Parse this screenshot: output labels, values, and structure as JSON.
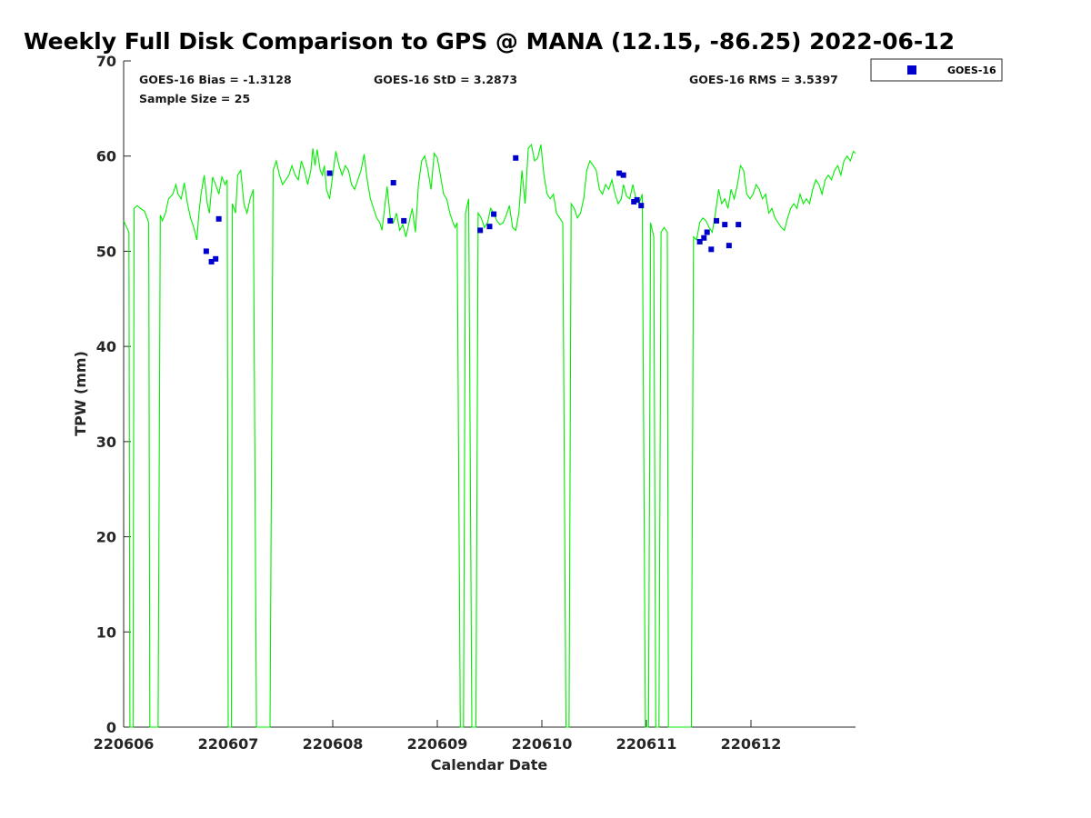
{
  "colors": {
    "gps_line": "#00ee00",
    "goes_marker": "#0000cc",
    "axis": "#262626"
  },
  "stats": {
    "bias": "GOES-16 Bias = -1.3128",
    "std": "GOES-16 StD = 3.2873",
    "rms": "GOES-16 RMS = 3.5397",
    "sample": "Sample Size = 25"
  },
  "legend": {
    "entries": [
      "GOES-16"
    ]
  },
  "chart_data": {
    "type": "line+scatter",
    "title": "Weekly Full Disk Comparison to GPS @ MANA (12.15, -86.25) 2022-06-12",
    "xlabel": "Calendar Date",
    "ylabel": "TPW (mm)",
    "xlim": [
      0,
      7.0
    ],
    "ylim": [
      0,
      70
    ],
    "x_ticks": [
      0,
      1,
      2,
      3,
      4,
      5,
      6
    ],
    "x_tick_labels": [
      "220606",
      "220607",
      "220608",
      "220609",
      "220610",
      "220611",
      "220612"
    ],
    "y_ticks": [
      0,
      10,
      20,
      30,
      40,
      50,
      60,
      70
    ],
    "y_tick_labels": [
      "0",
      "10",
      "20",
      "30",
      "40",
      "50",
      "60",
      "70"
    ],
    "series": [
      {
        "name": "GPS",
        "kind": "line",
        "points": [
          [
            0.0,
            53.2
          ],
          [
            0.03,
            52.5
          ],
          [
            0.05,
            52.0
          ],
          [
            0.06,
            0
          ],
          [
            0.09,
            0
          ],
          [
            0.1,
            54.5
          ],
          [
            0.13,
            54.8
          ],
          [
            0.16,
            54.5
          ],
          [
            0.2,
            54.2
          ],
          [
            0.24,
            53.0
          ],
          [
            0.25,
            0
          ],
          [
            0.33,
            0
          ],
          [
            0.35,
            53.8
          ],
          [
            0.37,
            53.2
          ],
          [
            0.4,
            54.0
          ],
          [
            0.43,
            55.5
          ],
          [
            0.47,
            56.0
          ],
          [
            0.5,
            57.0
          ],
          [
            0.52,
            56.0
          ],
          [
            0.55,
            55.5
          ],
          [
            0.58,
            57.2
          ],
          [
            0.61,
            55.0
          ],
          [
            0.64,
            53.5
          ],
          [
            0.67,
            52.5
          ],
          [
            0.7,
            51.2
          ],
          [
            0.72,
            54.0
          ],
          [
            0.74,
            56.0
          ],
          [
            0.77,
            58.0
          ],
          [
            0.8,
            55.0
          ],
          [
            0.82,
            54.0
          ],
          [
            0.85,
            57.8
          ],
          [
            0.88,
            57.0
          ],
          [
            0.91,
            56.0
          ],
          [
            0.94,
            57.8
          ],
          [
            0.97,
            57.0
          ],
          [
            0.99,
            57.5
          ],
          [
            1.0,
            0
          ],
          [
            1.03,
            0
          ],
          [
            1.04,
            55.0
          ],
          [
            1.07,
            54.0
          ],
          [
            1.09,
            58.0
          ],
          [
            1.12,
            58.5
          ],
          [
            1.15,
            55.0
          ],
          [
            1.18,
            54.0
          ],
          [
            1.21,
            55.5
          ],
          [
            1.24,
            56.5
          ],
          [
            1.27,
            0
          ],
          [
            1.4,
            0
          ],
          [
            1.43,
            58.5
          ],
          [
            1.46,
            59.5
          ],
          [
            1.49,
            58.0
          ],
          [
            1.52,
            57.0
          ],
          [
            1.55,
            57.5
          ],
          [
            1.58,
            58.0
          ],
          [
            1.61,
            59.0
          ],
          [
            1.64,
            58.0
          ],
          [
            1.67,
            57.5
          ],
          [
            1.7,
            59.5
          ],
          [
            1.73,
            58.5
          ],
          [
            1.76,
            57.0
          ],
          [
            1.79,
            58.5
          ],
          [
            1.81,
            60.8
          ],
          [
            1.83,
            59.0
          ],
          [
            1.85,
            60.7
          ],
          [
            1.88,
            58.5
          ],
          [
            1.9,
            58.0
          ],
          [
            1.92,
            59.0
          ],
          [
            1.94,
            56.5
          ],
          [
            1.97,
            55.5
          ],
          [
            2.0,
            58.0
          ],
          [
            2.03,
            60.5
          ],
          [
            2.06,
            59.0
          ],
          [
            2.09,
            58.0
          ],
          [
            2.12,
            59.0
          ],
          [
            2.15,
            58.5
          ],
          [
            2.18,
            57.0
          ],
          [
            2.21,
            56.5
          ],
          [
            2.24,
            57.5
          ],
          [
            2.27,
            58.5
          ],
          [
            2.3,
            60.2
          ],
          [
            2.33,
            57.5
          ],
          [
            2.36,
            55.5
          ],
          [
            2.39,
            54.5
          ],
          [
            2.42,
            53.5
          ],
          [
            2.45,
            53.0
          ],
          [
            2.47,
            52.2
          ],
          [
            2.49,
            54.0
          ],
          [
            2.52,
            56.8
          ],
          [
            2.55,
            53.5
          ],
          [
            2.58,
            53.0
          ],
          [
            2.61,
            54.0
          ],
          [
            2.64,
            52.2
          ],
          [
            2.67,
            52.8
          ],
          [
            2.7,
            51.5
          ],
          [
            2.73,
            53.0
          ],
          [
            2.76,
            54.5
          ],
          [
            2.79,
            52.0
          ],
          [
            2.82,
            57.0
          ],
          [
            2.85,
            59.5
          ],
          [
            2.88,
            60.0
          ],
          [
            2.91,
            58.5
          ],
          [
            2.94,
            56.5
          ],
          [
            2.97,
            60.3
          ],
          [
            3.0,
            59.8
          ],
          [
            3.03,
            58.0
          ],
          [
            3.06,
            56.0
          ],
          [
            3.09,
            55.5
          ],
          [
            3.12,
            54.0
          ],
          [
            3.15,
            53.0
          ],
          [
            3.17,
            52.5
          ],
          [
            3.19,
            53.0
          ],
          [
            3.22,
            0
          ],
          [
            3.25,
            0
          ],
          [
            3.27,
            54.0
          ],
          [
            3.3,
            55.5
          ],
          [
            3.33,
            0
          ],
          [
            3.37,
            0
          ],
          [
            3.39,
            54.0
          ],
          [
            3.42,
            53.5
          ],
          [
            3.45,
            52.5
          ],
          [
            3.48,
            53.0
          ],
          [
            3.51,
            54.5
          ],
          [
            3.54,
            54.0
          ],
          [
            3.57,
            53.2
          ],
          [
            3.6,
            52.8
          ],
          [
            3.63,
            53.0
          ],
          [
            3.66,
            53.8
          ],
          [
            3.69,
            54.8
          ],
          [
            3.72,
            52.5
          ],
          [
            3.75,
            52.2
          ],
          [
            3.78,
            54.0
          ],
          [
            3.81,
            58.5
          ],
          [
            3.84,
            55.0
          ],
          [
            3.87,
            60.8
          ],
          [
            3.9,
            61.2
          ],
          [
            3.93,
            59.5
          ],
          [
            3.96,
            59.8
          ],
          [
            3.99,
            61.2
          ],
          [
            4.02,
            58.0
          ],
          [
            4.05,
            56.0
          ],
          [
            4.08,
            55.5
          ],
          [
            4.11,
            56.0
          ],
          [
            4.14,
            54.0
          ],
          [
            4.17,
            53.5
          ],
          [
            4.2,
            53.0
          ],
          [
            4.23,
            0
          ],
          [
            4.26,
            0
          ],
          [
            4.28,
            55.0
          ],
          [
            4.31,
            54.5
          ],
          [
            4.34,
            53.5
          ],
          [
            4.37,
            54.0
          ],
          [
            4.4,
            55.5
          ],
          [
            4.43,
            58.5
          ],
          [
            4.46,
            59.5
          ],
          [
            4.49,
            59.0
          ],
          [
            4.52,
            58.5
          ],
          [
            4.55,
            56.5
          ],
          [
            4.58,
            56.0
          ],
          [
            4.61,
            57.0
          ],
          [
            4.64,
            56.5
          ],
          [
            4.67,
            57.5
          ],
          [
            4.7,
            56.0
          ],
          [
            4.73,
            55.0
          ],
          [
            4.76,
            55.5
          ],
          [
            4.78,
            57.0
          ],
          [
            4.81,
            55.8
          ],
          [
            4.84,
            55.5
          ],
          [
            4.87,
            57.0
          ],
          [
            4.9,
            55.5
          ],
          [
            4.93,
            55.0
          ],
          [
            4.96,
            56.0
          ],
          [
            4.99,
            0
          ],
          [
            5.02,
            0
          ],
          [
            5.04,
            53.0
          ],
          [
            5.07,
            51.5
          ],
          [
            5.09,
            0
          ],
          [
            5.12,
            0
          ],
          [
            5.14,
            52.0
          ],
          [
            5.17,
            52.5
          ],
          [
            5.2,
            52.0
          ],
          [
            5.21,
            0
          ],
          [
            5.43,
            0
          ],
          [
            5.45,
            51.5
          ],
          [
            5.48,
            51.2
          ],
          [
            5.51,
            53.0
          ],
          [
            5.54,
            53.5
          ],
          [
            5.57,
            53.2
          ],
          [
            5.6,
            52.5
          ],
          [
            5.63,
            52.0
          ],
          [
            5.66,
            54.0
          ],
          [
            5.69,
            56.5
          ],
          [
            5.72,
            55.0
          ],
          [
            5.75,
            55.5
          ],
          [
            5.78,
            54.5
          ],
          [
            5.81,
            56.5
          ],
          [
            5.84,
            55.5
          ],
          [
            5.87,
            57.0
          ],
          [
            5.9,
            59.0
          ],
          [
            5.93,
            58.5
          ],
          [
            5.96,
            56.0
          ],
          [
            5.99,
            55.5
          ],
          [
            6.02,
            56.0
          ],
          [
            6.05,
            57.0
          ],
          [
            6.08,
            56.5
          ],
          [
            6.11,
            55.5
          ],
          [
            6.14,
            56.0
          ],
          [
            6.17,
            54.0
          ],
          [
            6.2,
            54.5
          ],
          [
            6.23,
            53.5
          ],
          [
            6.26,
            53.0
          ],
          [
            6.29,
            52.5
          ],
          [
            6.32,
            52.2
          ],
          [
            6.35,
            53.5
          ],
          [
            6.38,
            54.5
          ],
          [
            6.41,
            55.0
          ],
          [
            6.44,
            54.5
          ],
          [
            6.47,
            56.0
          ],
          [
            6.5,
            55.0
          ],
          [
            6.53,
            55.5
          ],
          [
            6.56,
            55.0
          ],
          [
            6.59,
            56.5
          ],
          [
            6.62,
            57.5
          ],
          [
            6.65,
            57.0
          ],
          [
            6.68,
            56.0
          ],
          [
            6.71,
            57.5
          ],
          [
            6.74,
            58.0
          ],
          [
            6.77,
            57.5
          ],
          [
            6.8,
            58.5
          ],
          [
            6.83,
            59.0
          ],
          [
            6.86,
            58.0
          ],
          [
            6.89,
            59.5
          ],
          [
            6.92,
            60.0
          ],
          [
            6.95,
            59.5
          ],
          [
            6.98,
            60.5
          ],
          [
            7.0,
            60.3
          ]
        ]
      },
      {
        "name": "GOES-16",
        "kind": "scatter",
        "marker": "square",
        "points": [
          [
            0.79,
            50.0
          ],
          [
            0.84,
            48.9
          ],
          [
            0.88,
            49.2
          ],
          [
            0.91,
            53.4
          ],
          [
            1.97,
            58.2
          ],
          [
            2.55,
            53.2
          ],
          [
            2.58,
            57.2
          ],
          [
            2.68,
            53.2
          ],
          [
            3.41,
            52.2
          ],
          [
            3.5,
            52.6
          ],
          [
            3.54,
            53.9
          ],
          [
            3.75,
            59.8
          ],
          [
            4.74,
            58.2
          ],
          [
            4.78,
            58.0
          ],
          [
            4.88,
            55.2
          ],
          [
            4.91,
            55.4
          ],
          [
            4.95,
            54.8
          ],
          [
            5.51,
            51.0
          ],
          [
            5.55,
            51.4
          ],
          [
            5.58,
            52.0
          ],
          [
            5.62,
            50.2
          ],
          [
            5.67,
            53.2
          ],
          [
            5.75,
            52.8
          ],
          [
            5.79,
            50.6
          ],
          [
            5.88,
            52.8
          ]
        ]
      }
    ]
  }
}
